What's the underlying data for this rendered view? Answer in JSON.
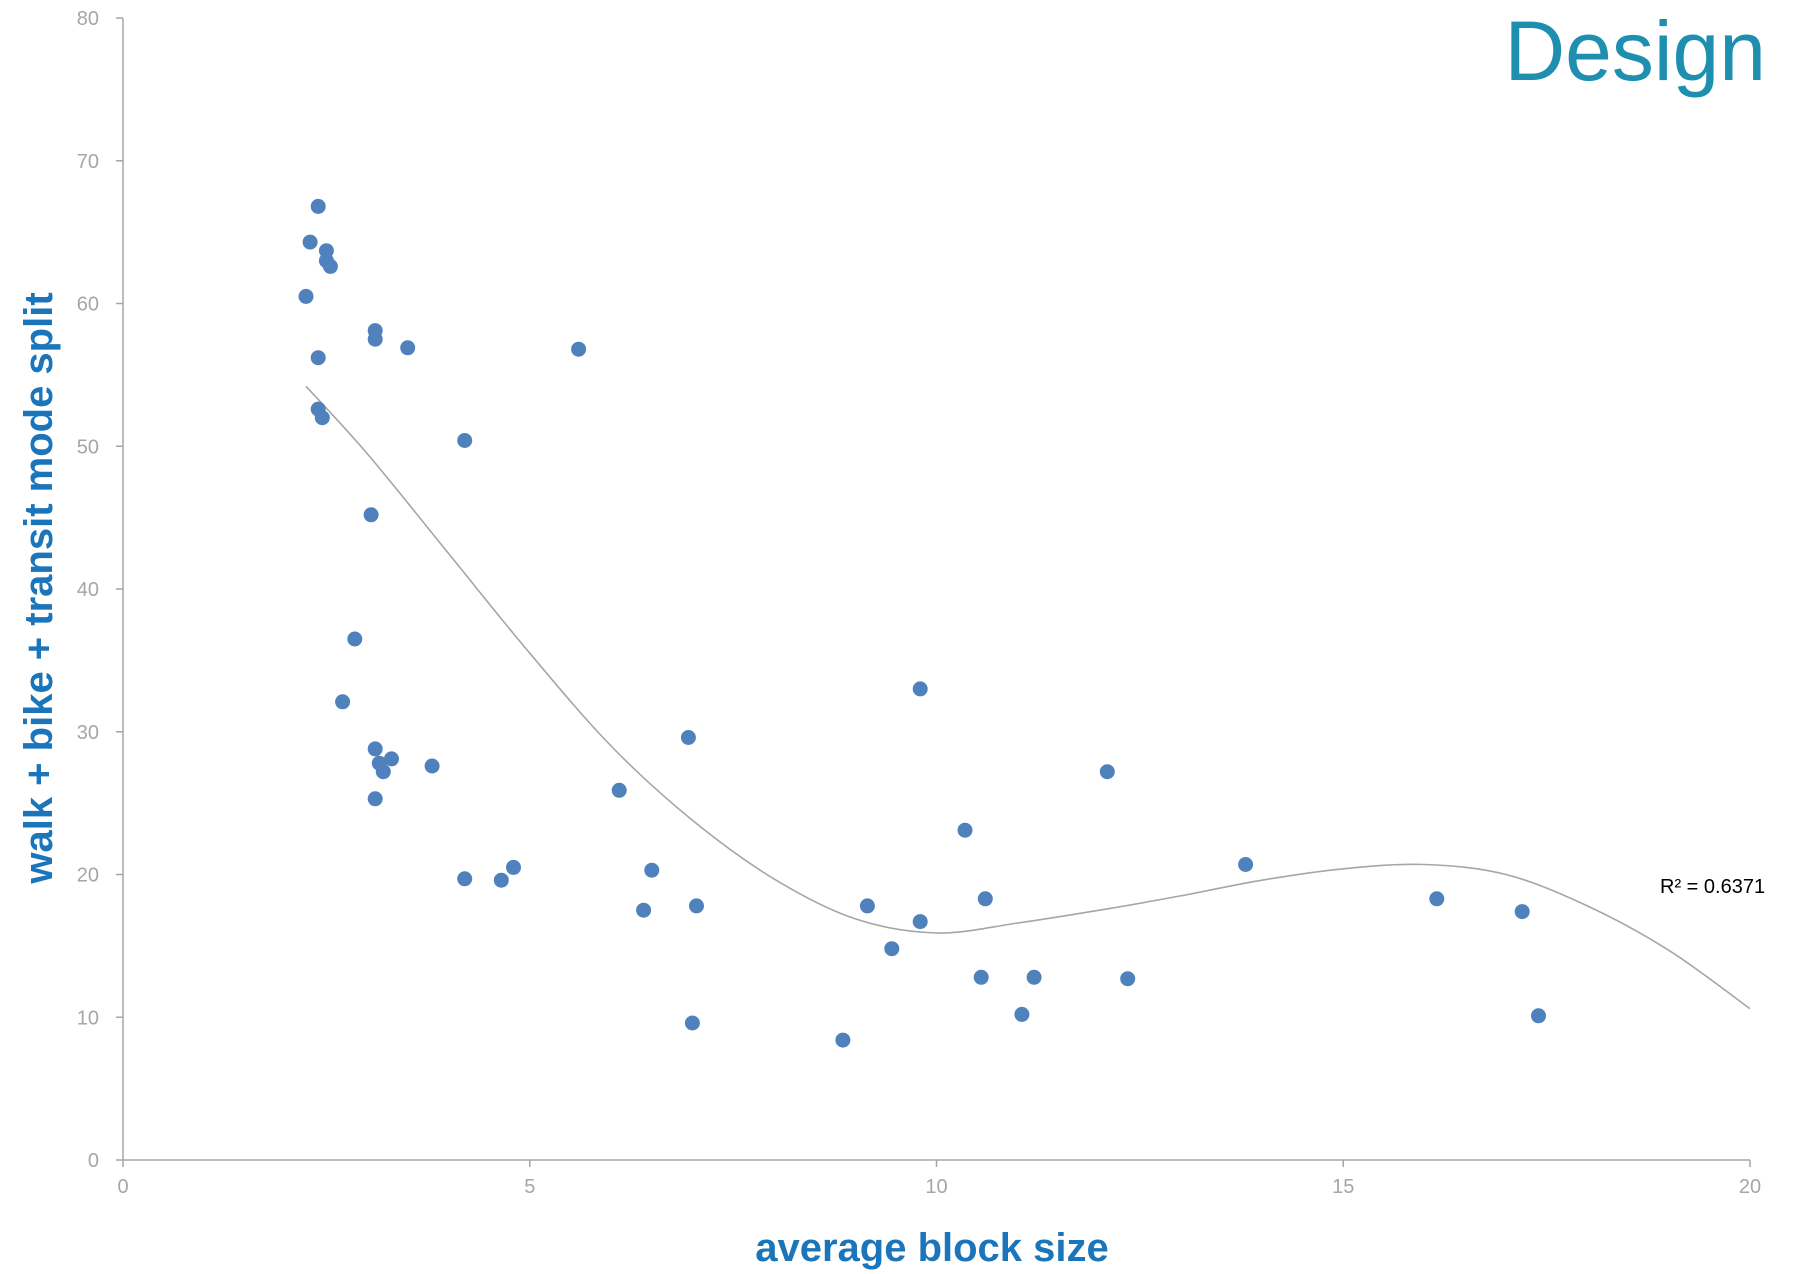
{
  "chart_data": {
    "type": "scatter",
    "title": "Design",
    "xlabel": "average block size",
    "ylabel": "walk + bike + transit mode split",
    "xlim": [
      0,
      20
    ],
    "ylim": [
      0,
      80
    ],
    "xticks": [
      0,
      5,
      10,
      15,
      20
    ],
    "yticks": [
      0,
      10,
      20,
      30,
      40,
      50,
      60,
      70,
      80
    ],
    "grid": false,
    "legend": "none",
    "colors": {
      "points": "#4f81bd",
      "trendline": "#a6a6a6",
      "axis_titles": "#1b75bb",
      "title": "#1f8fb0"
    },
    "series": [
      {
        "points": [
          [
            2.4,
            66.8
          ],
          [
            2.3,
            64.3
          ],
          [
            2.5,
            63.7
          ],
          [
            2.5,
            63.0
          ],
          [
            2.55,
            62.6
          ],
          [
            2.25,
            60.5
          ],
          [
            2.4,
            56.2
          ],
          [
            2.4,
            52.6
          ],
          [
            2.45,
            52.0
          ],
          [
            3.1,
            58.1
          ],
          [
            3.1,
            57.5
          ],
          [
            3.5,
            56.9
          ],
          [
            5.6,
            56.8
          ],
          [
            4.2,
            50.4
          ],
          [
            3.05,
            45.2
          ],
          [
            2.85,
            36.5
          ],
          [
            2.7,
            32.1
          ],
          [
            3.1,
            28.8
          ],
          [
            3.3,
            28.1
          ],
          [
            3.15,
            27.8
          ],
          [
            3.8,
            27.6
          ],
          [
            3.2,
            27.2
          ],
          [
            3.1,
            25.3
          ],
          [
            4.2,
            19.7
          ],
          [
            4.65,
            19.6
          ],
          [
            4.8,
            20.5
          ],
          [
            6.1,
            25.9
          ],
          [
            6.5,
            20.3
          ],
          [
            6.4,
            17.5
          ],
          [
            6.95,
            29.6
          ],
          [
            7.05,
            17.8
          ],
          [
            7.0,
            9.6
          ],
          [
            8.85,
            8.4
          ],
          [
            9.15,
            17.8
          ],
          [
            9.45,
            14.8
          ],
          [
            9.8,
            16.7
          ],
          [
            9.8,
            33.0
          ],
          [
            10.35,
            23.1
          ],
          [
            10.55,
            12.8
          ],
          [
            10.6,
            18.3
          ],
          [
            11.05,
            10.2
          ],
          [
            11.2,
            12.8
          ],
          [
            12.1,
            27.2
          ],
          [
            12.35,
            12.7
          ],
          [
            13.8,
            20.7
          ],
          [
            16.15,
            18.3
          ],
          [
            17.2,
            17.4
          ],
          [
            17.4,
            10.1
          ]
        ]
      }
    ],
    "trendline": {
      "type": "polynomial",
      "x_range": [
        2.25,
        20
      ],
      "points": [
        [
          2.25,
          54.2
        ],
        [
          3,
          49.5
        ],
        [
          4,
          42.5
        ],
        [
          5,
          35.5
        ],
        [
          6,
          29.0
        ],
        [
          7,
          23.8
        ],
        [
          8,
          19.7
        ],
        [
          9,
          16.9
        ],
        [
          10,
          15.9
        ],
        [
          11,
          16.6
        ],
        [
          12,
          17.5
        ],
        [
          13,
          18.5
        ],
        [
          14,
          19.6
        ],
        [
          15,
          20.4
        ],
        [
          16,
          20.7
        ],
        [
          17,
          20.0
        ],
        [
          18,
          17.8
        ],
        [
          19,
          14.7
        ],
        [
          20,
          10.6
        ]
      ],
      "label": "R² = 0.6371"
    }
  }
}
